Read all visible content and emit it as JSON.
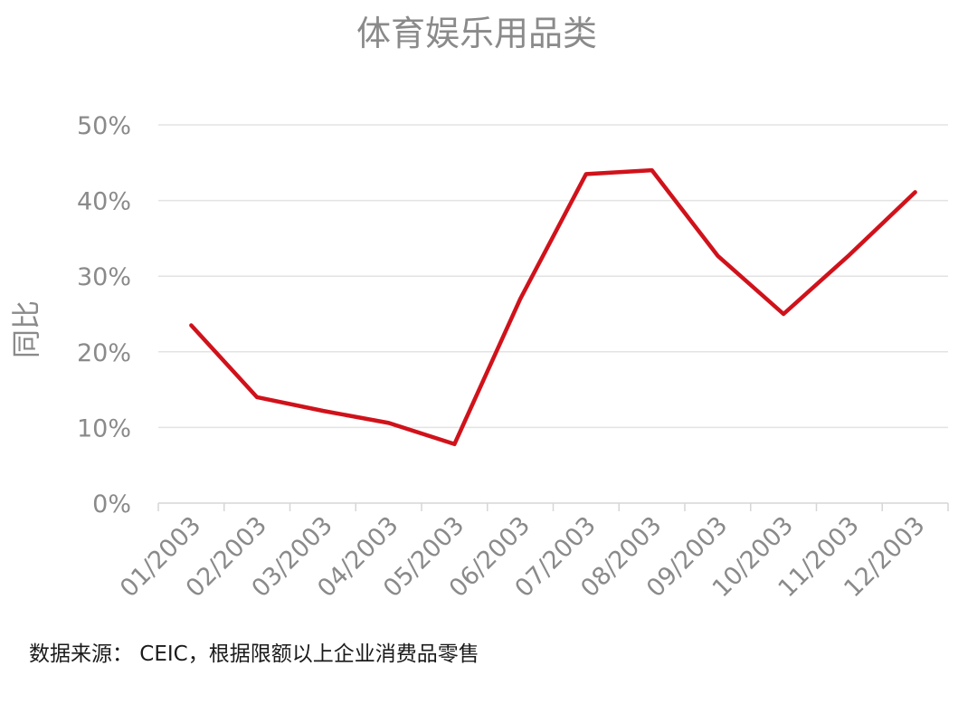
{
  "chart_data": {
    "type": "line",
    "title": "体育娱乐用品类",
    "xlabel": "",
    "ylabel": "同比",
    "categories": [
      "01/2003",
      "02/2003",
      "03/2003",
      "04/2003",
      "05/2003",
      "06/2003",
      "07/2003",
      "08/2003",
      "09/2003",
      "10/2003",
      "11/2003",
      "12/2003"
    ],
    "series": [
      {
        "values": [
          23.5,
          14.0,
          12.2,
          10.6,
          7.8,
          27.0,
          43.5,
          44.0,
          32.7,
          25.0,
          32.8,
          41.1
        ],
        "color": "#d0121b"
      }
    ],
    "yticks": [
      "0%",
      "10%",
      "20%",
      "30%",
      "40%",
      "50%"
    ],
    "ylim": [
      0,
      50
    ],
    "grid": true,
    "legend": "none"
  },
  "source_note": "数据来源： CEIC，根据限额以上企业消费品零售"
}
